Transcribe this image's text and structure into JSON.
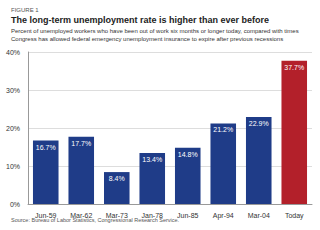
{
  "chart_data": {
    "type": "bar",
    "figure_label": "FIGURE 1",
    "title": "The long-term unemployment rate is higher than ever before",
    "subtitle": "Percent of unemployed workers who have been out of work six months or longer today, compared with times Congress has allowed federal emergency unemployment insurance to expire after previous recessions",
    "source": "Source: Bureau of Labor Statistics, Congressional Research Service.",
    "categories": [
      "Jun-59",
      "Mar-62",
      "Mar-73",
      "Jan-78",
      "Jun-85",
      "Apr-94",
      "Mar-04",
      "Today"
    ],
    "values": [
      16.7,
      17.7,
      8.4,
      13.4,
      14.8,
      21.2,
      22.9,
      37.7
    ],
    "value_labels": [
      "16.7%",
      "17.7%",
      "8.4%",
      "13.4%",
      "14.8%",
      "21.2%",
      "22.9%",
      "37.7%"
    ],
    "colors": [
      "#1f3c88",
      "#1f3c88",
      "#1f3c88",
      "#1f3c88",
      "#1f3c88",
      "#1f3c88",
      "#1f3c88",
      "#b3202a"
    ],
    "data_labels": true,
    "ylim": [
      0,
      40
    ],
    "yticks": [
      {
        "value": 0,
        "label": "0%"
      },
      {
        "value": 10,
        "label": "10%"
      },
      {
        "value": 20,
        "label": "20%"
      },
      {
        "value": 30,
        "label": "30%"
      },
      {
        "value": 40,
        "label": "40%"
      }
    ],
    "grid": true
  }
}
